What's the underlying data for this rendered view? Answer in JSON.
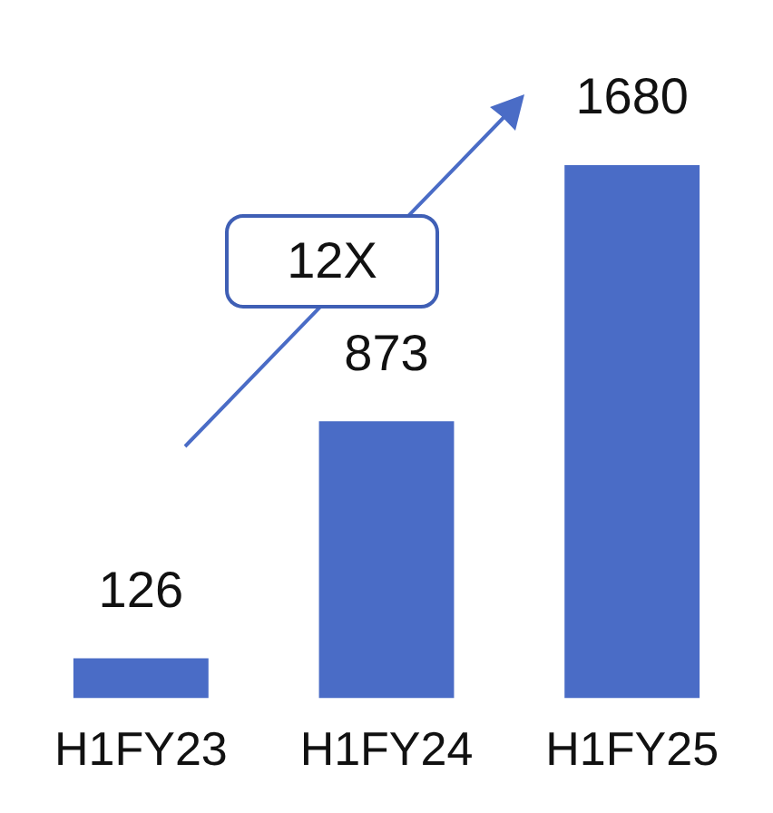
{
  "chart_data": {
    "type": "bar",
    "categories": [
      "H1FY23",
      "H1FY24",
      "H1FY25"
    ],
    "values": [
      126,
      873,
      1680
    ],
    "color": "#4a6cc6",
    "data_labels": true,
    "grid": false,
    "legend": false,
    "annotations": [
      "12X"
    ]
  }
}
